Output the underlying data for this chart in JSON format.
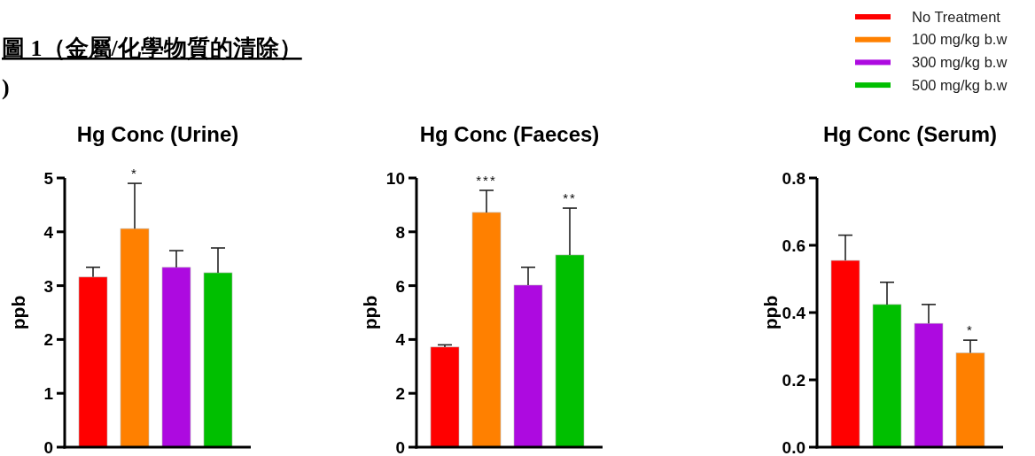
{
  "chart_data": [
    {
      "type": "bar",
      "title": "Hg Conc (Urine)",
      "ylabel": "ppb",
      "categories": [
        null
      ],
      "legend": "top right",
      "annotations": [
        "圖 1（金屬/化學物質的清除）",
        ")",
        {
          "text": "*",
          "y": 4.9
        }
      ],
      "series": [
        {
          "name": "No Treatment",
          "color": "#ff0000",
          "values": [
            3.16
          ],
          "errors": [
            [
              3.16,
              3.34
            ]
          ]
        },
        {
          "name": "100 mg/kg b.w",
          "color": "#ff8000",
          "values": [
            4.06
          ],
          "errors": [
            [
              4.06,
              4.9
            ]
          ]
        },
        {
          "name": "300 mg/kg b.w",
          "color": "#ad0ae0",
          "values": [
            3.34
          ],
          "errors": [
            [
              3.34,
              3.65
            ]
          ]
        },
        {
          "name": "500 mg/kg b.w",
          "color": "#00bf00",
          "values": [
            3.24
          ],
          "errors": [
            [
              3.24,
              3.7
            ]
          ]
        }
      ],
      "ylim": [
        0,
        5
      ],
      "yticks": [
        0,
        1,
        2,
        3,
        4,
        5
      ]
    },
    {
      "type": "bar",
      "title": "Hg Conc (Faeces)",
      "ylabel": "ppb",
      "categories": [
        null
      ],
      "annotations": [
        {
          "text": "***",
          "y": 9.54
        },
        {
          "text": "**",
          "y": 8.88
        }
      ],
      "series": [
        {
          "color": "#ff0000",
          "values": [
            3.72
          ],
          "errors": [
            [
              3.72,
              3.8
            ]
          ]
        },
        {
          "color": "#ff8000",
          "values": [
            8.72
          ],
          "errors": [
            [
              8.72,
              9.54
            ]
          ]
        },
        {
          "color": "#ad0ae0",
          "values": [
            6.02
          ],
          "errors": [
            [
              6.02,
              6.68
            ]
          ]
        },
        {
          "color": "#00bf00",
          "values": [
            7.14
          ],
          "errors": [
            [
              7.14,
              8.88
            ]
          ]
        }
      ],
      "ylim": [
        0,
        10
      ],
      "yticks": [
        0,
        2,
        4,
        6,
        8,
        10
      ]
    },
    {
      "type": "bar",
      "title": "Hg Conc (Serum)",
      "ylabel": "ppb",
      "categories": [
        null
      ],
      "annotations": [
        {
          "text": "*",
          "y": 0.318
        }
      ],
      "series": [
        {
          "color": "#ff0000",
          "values": [
            0.555
          ],
          "errors": [
            [
              0.555,
              0.63
            ]
          ]
        },
        {
          "color": "#00bf00",
          "values": [
            0.424
          ],
          "errors": [
            [
              0.424,
              0.49
            ]
          ]
        },
        {
          "color": "#ad0ae0",
          "values": [
            0.368
          ],
          "errors": [
            [
              0.368,
              0.424
            ]
          ]
        },
        {
          "color": "#ff8000",
          "values": [
            0.28
          ],
          "errors": [
            [
              0.28,
              0.318
            ]
          ]
        }
      ],
      "ylim": [
        0,
        0.8
      ],
      "yticks": [
        {
          "value": 0,
          "label": "0.0"
        },
        {
          "value": 0.2,
          "label": "0.2"
        },
        {
          "value": 0.4,
          "label": "0.4"
        },
        {
          "value": 0.6,
          "label": "0.6"
        },
        {
          "value": 0.8,
          "label": "0.8"
        }
      ]
    }
  ]
}
